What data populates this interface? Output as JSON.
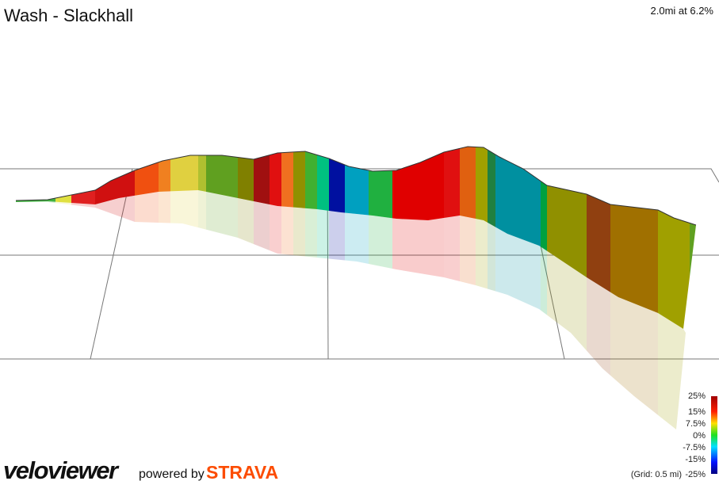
{
  "header": {
    "title": "Wash - Slackhall",
    "summary": "2.0mi at 6.2%"
  },
  "legend": {
    "labels": [
      "25%",
      "15%",
      "7.5%",
      "0%",
      "-7.5%",
      "-15%"
    ],
    "grid_note": "(Grid: 0.5 mi)",
    "last_label": "-25%"
  },
  "footer": {
    "logo": "veloviewer",
    "powered": "powered by",
    "brand": "STRAVA"
  }
}
